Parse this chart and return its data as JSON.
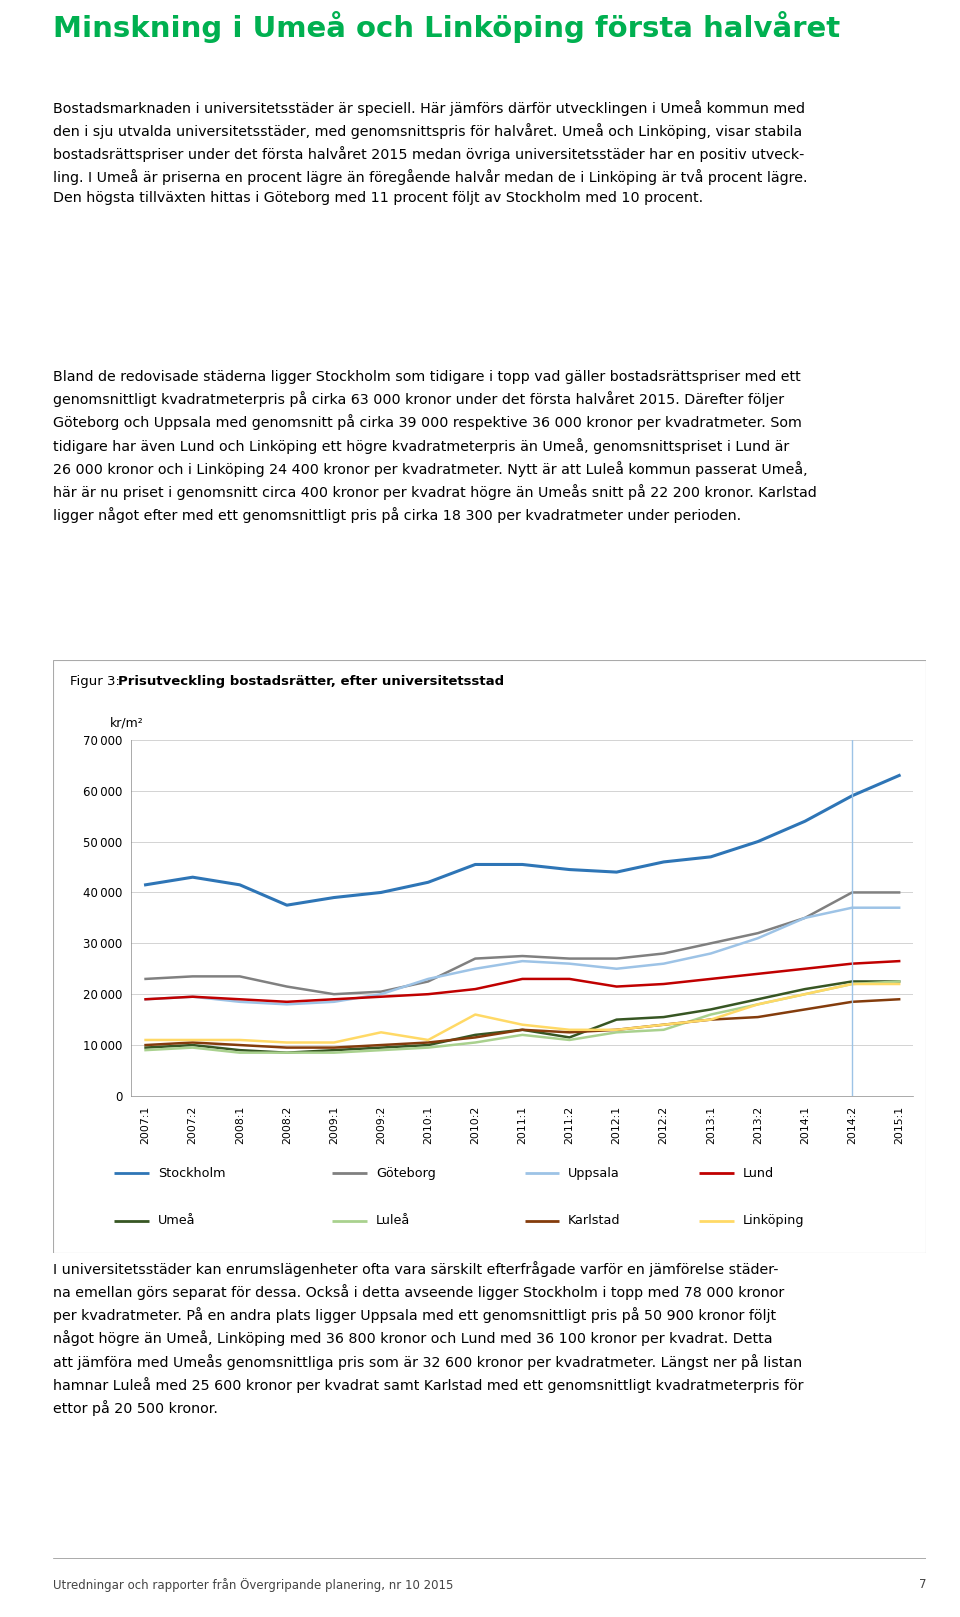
{
  "xlabels": [
    "2007:1",
    "2007:2",
    "2008:1",
    "2008:2",
    "2009:1",
    "2009:2",
    "2010:1",
    "2010:2",
    "2011:1",
    "2011:2",
    "2012:1",
    "2012:2",
    "2013:1",
    "2013:2",
    "2014:1",
    "2014:2",
    "2015:1"
  ],
  "ylim": [
    0,
    70000
  ],
  "yticks": [
    0,
    10000,
    20000,
    30000,
    40000,
    50000,
    60000,
    70000
  ],
  "vline_x": 15,
  "series": {
    "Stockholm": {
      "color": "#2E75B6",
      "linewidth": 2.2,
      "values": [
        41500,
        43000,
        41500,
        37500,
        39000,
        40000,
        42000,
        45500,
        45500,
        44500,
        44000,
        46000,
        47000,
        50000,
        54000,
        59000,
        63000
      ]
    },
    "Göteborg": {
      "color": "#808080",
      "linewidth": 1.8,
      "values": [
        23000,
        23500,
        23500,
        21500,
        20000,
        20500,
        22500,
        27000,
        27500,
        27000,
        27000,
        28000,
        30000,
        32000,
        35000,
        40000,
        40000
      ]
    },
    "Uppsala": {
      "color": "#9DC3E6",
      "linewidth": 1.8,
      "values": [
        19000,
        19500,
        18500,
        18000,
        18500,
        20000,
        23000,
        25000,
        26500,
        26000,
        25000,
        26000,
        28000,
        31000,
        35000,
        37000,
        37000
      ]
    },
    "Lund": {
      "color": "#C00000",
      "linewidth": 1.8,
      "values": [
        19000,
        19500,
        19000,
        18500,
        19000,
        19500,
        20000,
        21000,
        23000,
        23000,
        21500,
        22000,
        23000,
        24000,
        25000,
        26000,
        26500
      ]
    },
    "Umeå": {
      "color": "#375623",
      "linewidth": 1.8,
      "values": [
        9500,
        10000,
        9000,
        8500,
        9000,
        9500,
        10000,
        12000,
        13000,
        11500,
        15000,
        15500,
        17000,
        19000,
        21000,
        22500,
        22500
      ]
    },
    "Luleå": {
      "color": "#A9D18E",
      "linewidth": 1.8,
      "values": [
        9000,
        9500,
        8500,
        8500,
        8500,
        9000,
        9500,
        10500,
        12000,
        11000,
        12500,
        13000,
        16000,
        18000,
        20000,
        22000,
        22500
      ]
    },
    "Karlstad": {
      "color": "#843C0C",
      "linewidth": 1.8,
      "values": [
        10000,
        10500,
        10000,
        9500,
        9500,
        10000,
        10500,
        11500,
        13000,
        12500,
        13000,
        14000,
        15000,
        15500,
        17000,
        18500,
        19000
      ]
    },
    "Linköping": {
      "color": "#FFD966",
      "linewidth": 1.8,
      "values": [
        11000,
        11000,
        11000,
        10500,
        10500,
        12500,
        11000,
        16000,
        14000,
        13000,
        13000,
        14000,
        15000,
        18000,
        20000,
        22000,
        22000
      ]
    }
  },
  "legend_order": [
    "Stockholm",
    "Göteborg",
    "Uppsala",
    "Lund",
    "Umeå",
    "Luleå",
    "Karlstad",
    "Linköping"
  ],
  "figure_bg": "#FFFFFF",
  "grid_color": "#CCCCCC",
  "vline_color": "#9DC3E6",
  "heading_color": "#00B050"
}
